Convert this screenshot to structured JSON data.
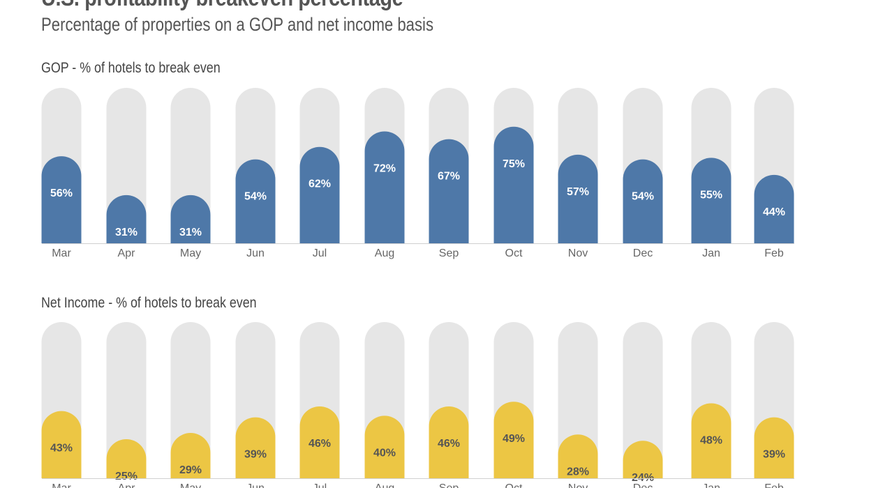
{
  "chart_data": [
    {
      "type": "bar",
      "title": "U.S. profitability breakeven percentage",
      "subtitle": "Percentage of properties on a GOP and net income basis",
      "panel_title": "GOP - % of hotels to break even",
      "categories": [
        "Mar",
        "Apr",
        "May",
        "Jun",
        "Jul",
        "Aug",
        "Sep",
        "Oct",
        "Nov",
        "Dec",
        "Jan",
        "Feb"
      ],
      "values": [
        56,
        31,
        31,
        54,
        62,
        72,
        67,
        75,
        57,
        54,
        55,
        44
      ],
      "labels": [
        "56%",
        "31%",
        "31%",
        "54%",
        "62%",
        "72%",
        "67%",
        "75%",
        "57%",
        "54%",
        "55%",
        "44%"
      ],
      "ylim": [
        0,
        100
      ],
      "color": "#4e78a8",
      "background_color": "#e6e6e6"
    },
    {
      "type": "bar",
      "panel_title": "Net Income - % of hotels to break even",
      "categories": [
        "Mar",
        "Apr",
        "May",
        "Jun",
        "Jul",
        "Aug",
        "Sep",
        "Oct",
        "Nov",
        "Dec",
        "Jan",
        "Feb"
      ],
      "values": [
        43,
        25,
        29,
        39,
        46,
        40,
        46,
        49,
        28,
        24,
        48,
        39
      ],
      "labels": [
        "43%",
        "25%",
        "29%",
        "39%",
        "46%",
        "40%",
        "46%",
        "49%",
        "28%",
        "24%",
        "48%",
        "39%"
      ],
      "ylim": [
        0,
        100
      ],
      "color": "#ecc644",
      "background_color": "#e6e6e6"
    }
  ]
}
